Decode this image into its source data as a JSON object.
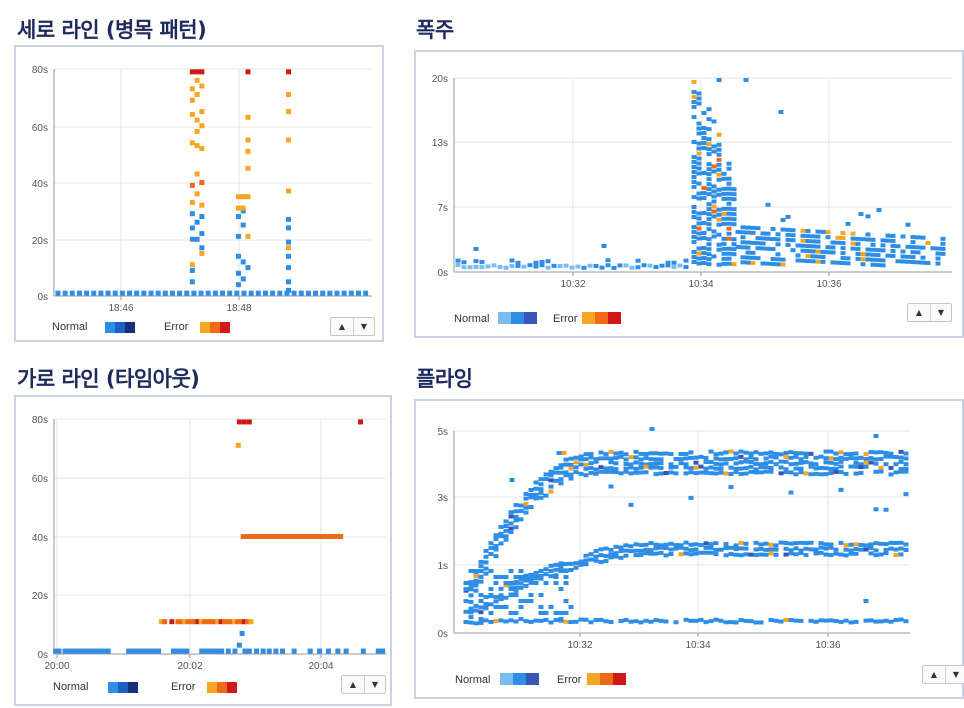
{
  "panels": [
    {
      "title": "세로 라인 (병목 패턴)",
      "legend": {
        "normal": "Normal",
        "error": "Error"
      },
      "normal_colors": [
        "#2e8ee6",
        "#1d5fc7",
        "#17307a"
      ],
      "error_colors": [
        "#f5a623",
        "#ee6a1a",
        "#d01818"
      ],
      "chart_data": {
        "type": "scatter",
        "y_unit": "s",
        "ylim": [
          0,
          80
        ],
        "y_ticks": [
          "0s",
          "20s",
          "40s",
          "60s",
          "80s"
        ],
        "x_ticks": [
          "18:46",
          "18:48"
        ],
        "grid": true,
        "series": [
          {
            "name": "Normal",
            "points": [
              [
                0.5,
                1
              ],
              [
                1.4,
                1
              ],
              [
                2.3,
                1
              ],
              [
                3.2,
                1
              ],
              [
                4.1,
                1
              ],
              [
                5,
                1
              ],
              [
                5.9,
                1
              ],
              [
                6.8,
                1
              ],
              [
                7.7,
                1
              ],
              [
                8.6,
                1
              ],
              [
                9.5,
                1
              ],
              [
                10.4,
                1
              ],
              [
                11.3,
                1
              ],
              [
                12.2,
                1
              ],
              [
                13.1,
                1
              ],
              [
                14,
                1
              ],
              [
                14.9,
                1
              ],
              [
                15.8,
                1
              ],
              [
                16.7,
                1
              ],
              [
                17.6,
                1
              ],
              [
                18.5,
                1
              ],
              [
                19.4,
                1
              ],
              [
                20.3,
                1
              ],
              [
                21.2,
                1
              ],
              [
                22.1,
                1
              ],
              [
                23,
                1
              ],
              [
                23.9,
                1
              ],
              [
                24.8,
                1
              ],
              [
                25.7,
                1
              ],
              [
                26.6,
                1
              ],
              [
                27.5,
                1
              ],
              [
                28.4,
                1
              ],
              [
                29.3,
                1
              ],
              [
                30.2,
                1
              ],
              [
                31.1,
                1
              ],
              [
                32,
                1
              ],
              [
                32.9,
                1
              ],
              [
                33.8,
                1
              ],
              [
                34.7,
                1
              ],
              [
                35.6,
                1
              ],
              [
                36.5,
                1
              ],
              [
                37.4,
                1
              ],
              [
                38.3,
                1
              ],
              [
                39.2,
                1
              ],
              [
                17.4,
                5
              ],
              [
                17.4,
                9
              ],
              [
                17.4,
                20
              ],
              [
                17.4,
                24
              ],
              [
                17.4,
                29
              ],
              [
                18,
                20
              ],
              [
                18,
                26
              ],
              [
                18.6,
                17
              ],
              [
                18.6,
                22
              ],
              [
                18.6,
                28
              ],
              [
                23.2,
                4
              ],
              [
                23.2,
                8
              ],
              [
                23.2,
                14
              ],
              [
                23.2,
                21
              ],
              [
                23.2,
                28
              ],
              [
                23.8,
                6
              ],
              [
                23.8,
                12
              ],
              [
                23.8,
                25
              ],
              [
                23.8,
                30
              ],
              [
                24.4,
                10
              ],
              [
                29.5,
                2
              ],
              [
                29.5,
                5
              ],
              [
                29.5,
                10
              ],
              [
                29.5,
                14
              ],
              [
                29.5,
                19
              ],
              [
                29.5,
                24
              ],
              [
                29.5,
                27
              ]
            ]
          },
          {
            "name": "Error",
            "points": [
              [
                17.4,
                79
              ],
              [
                17.4,
                73
              ],
              [
                17.4,
                69
              ],
              [
                17.4,
                64
              ],
              [
                17.4,
                54
              ],
              [
                17.4,
                39
              ],
              [
                17.4,
                33
              ],
              [
                17.4,
                11
              ],
              [
                18,
                79
              ],
              [
                18,
                76
              ],
              [
                18,
                71
              ],
              [
                18,
                62
              ],
              [
                18,
                58
              ],
              [
                18,
                53
              ],
              [
                18,
                43
              ],
              [
                18,
                36
              ],
              [
                18.6,
                79
              ],
              [
                18.6,
                74
              ],
              [
                18.6,
                65
              ],
              [
                18.6,
                60
              ],
              [
                18.6,
                52
              ],
              [
                18.6,
                40
              ],
              [
                18.6,
                32
              ],
              [
                18.6,
                15
              ],
              [
                23.2,
                35
              ],
              [
                23.2,
                31
              ],
              [
                23.8,
                35
              ],
              [
                23.8,
                31
              ],
              [
                24.4,
                79
              ],
              [
                24.4,
                63
              ],
              [
                24.4,
                55
              ],
              [
                24.4,
                51
              ],
              [
                24.4,
                45
              ],
              [
                24.4,
                35
              ],
              [
                24.4,
                21
              ],
              [
                29.5,
                79
              ],
              [
                29.5,
                71
              ],
              [
                29.5,
                65
              ],
              [
                29.5,
                55
              ],
              [
                29.5,
                37
              ],
              [
                29.5,
                17
              ]
            ]
          }
        ]
      }
    },
    {
      "title": "폭주",
      "legend": {
        "normal": "Normal",
        "error": "Error"
      },
      "normal_colors": [
        "#79bdf2",
        "#2e8ee6",
        "#3a55b8"
      ],
      "error_colors": [
        "#f5a623",
        "#ee6a1a",
        "#d01818"
      ],
      "chart_data": {
        "type": "scatter",
        "y_unit": "s",
        "y_ticks": [
          "0s",
          "7s",
          "13s",
          "20s"
        ],
        "x_ticks": [
          "10:32",
          "10:34",
          "10:36"
        ],
        "grid": true,
        "density": "burst at 10:34 reaching 20s, then decaying to about 1-3s"
      }
    },
    {
      "title": "가로 라인 (타임아웃)",
      "legend": {
        "normal": "Normal",
        "error": "Error"
      },
      "normal_colors": [
        "#2e8ee6",
        "#1d5fc7",
        "#17307a"
      ],
      "error_colors": [
        "#f5a623",
        "#ee6a1a",
        "#d01818"
      ],
      "chart_data": {
        "type": "scatter",
        "y_unit": "s",
        "ylim": [
          0,
          80
        ],
        "y_ticks": [
          "0s",
          "20s",
          "40s",
          "60s",
          "80s"
        ],
        "x_ticks": [
          "20:00",
          "20:02",
          "20:04"
        ],
        "grid": true,
        "series": [
          {
            "name": "Normal",
            "points": [
              [
                0.3,
                1
              ],
              [
                0.9,
                1
              ],
              [
                2.0,
                1
              ],
              [
                2.6,
                1
              ],
              [
                3.2,
                1
              ],
              [
                3.8,
                1
              ],
              [
                4.4,
                1
              ],
              [
                5.0,
                1
              ],
              [
                5.6,
                1
              ],
              [
                6.2,
                1
              ],
              [
                6.8,
                1
              ],
              [
                7.4,
                1
              ],
              [
                8.0,
                1
              ],
              [
                8.6,
                1
              ],
              [
                9.2,
                1
              ],
              [
                9.8,
                1
              ],
              [
                13.5,
                1
              ],
              [
                14.1,
                1
              ],
              [
                14.7,
                1
              ],
              [
                15.3,
                1
              ],
              [
                15.9,
                1
              ],
              [
                16.5,
                1
              ],
              [
                17.1,
                1
              ],
              [
                17.7,
                1
              ],
              [
                18.3,
                1
              ],
              [
                18.9,
                1
              ],
              [
                21.6,
                1
              ],
              [
                22.2,
                1
              ],
              [
                22.8,
                1
              ],
              [
                23.4,
                1
              ],
              [
                24.0,
                1
              ],
              [
                26.7,
                1
              ],
              [
                27.3,
                1
              ],
              [
                27.9,
                1
              ],
              [
                28.5,
                1
              ],
              [
                29.1,
                1
              ],
              [
                29.7,
                1
              ],
              [
                30.3,
                1
              ],
              [
                31.5,
                1
              ],
              [
                32.7,
                1
              ],
              [
                34.5,
                1
              ],
              [
                35.3,
                1
              ],
              [
                36.6,
                1
              ],
              [
                37.8,
                1
              ],
              [
                38.9,
                1
              ],
              [
                40.1,
                1
              ],
              [
                41.3,
                1
              ],
              [
                43.4,
                1
              ],
              [
                46.3,
                1
              ],
              [
                48.0,
                1
              ],
              [
                49.6,
                1
              ],
              [
                51.3,
                1
              ],
              [
                52.8,
                1
              ],
              [
                55.9,
                1
              ],
              [
                58.6,
                1
              ],
              [
                59.4,
                1
              ],
              [
                33.5,
                3
              ],
              [
                34.0,
                7
              ]
            ]
          },
          {
            "name": "Error",
            "points": [
              [
                19.4,
                11
              ],
              [
                20.0,
                11
              ],
              [
                21.3,
                11
              ],
              [
                22.4,
                11
              ],
              [
                23.0,
                11
              ],
              [
                23.6,
                11
              ],
              [
                24.2,
                11
              ],
              [
                24.8,
                11
              ],
              [
                25.4,
                11
              ],
              [
                26.0,
                11
              ],
              [
                26.6,
                11
              ],
              [
                27.2,
                11
              ],
              [
                27.8,
                11
              ],
              [
                28.4,
                11
              ],
              [
                29.0,
                11
              ],
              [
                29.6,
                11
              ],
              [
                30.2,
                11
              ],
              [
                30.8,
                11
              ],
              [
                31.4,
                11
              ],
              [
                32.0,
                11
              ],
              [
                32.6,
                11
              ],
              [
                33.2,
                11
              ],
              [
                33.8,
                11
              ],
              [
                34.4,
                11
              ],
              [
                35.0,
                11
              ],
              [
                35.6,
                11
              ],
              [
                34.2,
                40
              ],
              [
                35.0,
                40
              ],
              [
                35.8,
                40
              ],
              [
                36.6,
                40
              ],
              [
                37.4,
                40
              ],
              [
                38.2,
                40
              ],
              [
                39.0,
                40
              ],
              [
                39.8,
                40
              ],
              [
                40.6,
                40
              ],
              [
                41.4,
                40
              ],
              [
                42.2,
                40
              ],
              [
                43.0,
                40
              ],
              [
                43.8,
                40
              ],
              [
                44.6,
                40
              ],
              [
                45.4,
                40
              ],
              [
                46.2,
                40
              ],
              [
                47.0,
                40
              ],
              [
                47.8,
                40
              ],
              [
                48.6,
                40
              ],
              [
                49.4,
                40
              ],
              [
                50.2,
                40
              ],
              [
                51.0,
                40
              ],
              [
                51.8,
                40
              ],
              [
                33.5,
                79
              ],
              [
                34.4,
                79
              ],
              [
                35.3,
                79
              ],
              [
                33.3,
                71
              ],
              [
                55.4,
                79
              ]
            ]
          }
        ]
      }
    },
    {
      "title": "플라잉",
      "legend": {
        "normal": "Normal",
        "error": "Error"
      },
      "normal_colors": [
        "#79bdf2",
        "#2e8ee6",
        "#3a55b8"
      ],
      "error_colors": [
        "#f5a623",
        "#ee6a1a",
        "#d01818"
      ],
      "chart_data": {
        "type": "scatter",
        "y_unit": "s",
        "y_ticks": [
          "0s",
          "1s",
          "3s",
          "5s"
        ],
        "x_ticks": [
          "10:32",
          "10:34",
          "10:36"
        ],
        "grid": true,
        "density": "three bands rising from near 0s and flattening at about 0.3s, 1.5s and 3.5s"
      }
    }
  ]
}
